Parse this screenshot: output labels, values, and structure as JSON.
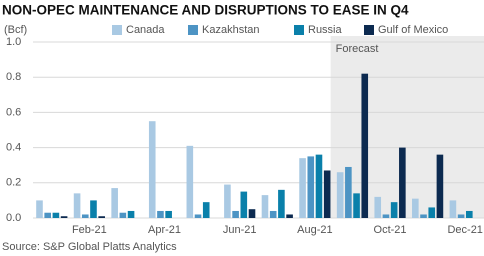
{
  "chart_data": {
    "type": "bar",
    "title": "NON-OPEC MAINTENANCE AND DISRUPTIONS TO EASE IN Q4",
    "y_unit_label": "(Bcf)",
    "source": "Source: S&P Global Platts Analytics",
    "categories": [
      null,
      "Feb-21",
      null,
      "Apr-21",
      null,
      "Jun-21",
      null,
      "Aug-21",
      null,
      "Oct-21",
      null,
      "Dec-21"
    ],
    "series": [
      {
        "name": "Canada",
        "color": "#a9c9e3",
        "values": [
          0.1,
          0.14,
          0.17,
          0.55,
          0.41,
          0.19,
          0.13,
          0.34,
          0.26,
          0.12,
          0.11,
          0.1
        ]
      },
      {
        "name": "Kazakhstan",
        "color": "#4d94c4",
        "values": [
          0.03,
          0.02,
          0.03,
          0.04,
          0.02,
          0.04,
          0.04,
          0.35,
          0.29,
          0.02,
          0.02,
          0.02
        ]
      },
      {
        "name": "Russia",
        "color": "#0a80aa",
        "values": [
          0.03,
          0.1,
          0.04,
          0.04,
          0.09,
          0.15,
          0.16,
          0.36,
          0.14,
          0.09,
          0.06,
          0.04
        ]
      },
      {
        "name": "Gulf of Mexico",
        "color": "#0c2a50",
        "values": [
          0.01,
          0.01,
          0,
          0,
          0,
          0.05,
          0.02,
          0.27,
          0.82,
          0.4,
          0.36,
          0
        ]
      }
    ],
    "shaded_region": {
      "label": "Forecast",
      "start_index": 8,
      "color": "#ebebeb"
    },
    "ylim": [
      0,
      1
    ],
    "yticks": [
      {
        "value": 0,
        "label": "0.0"
      },
      0.2,
      0.4,
      0.6,
      0.8,
      {
        "value": 1,
        "label": "1.0"
      }
    ],
    "grid": true
  }
}
